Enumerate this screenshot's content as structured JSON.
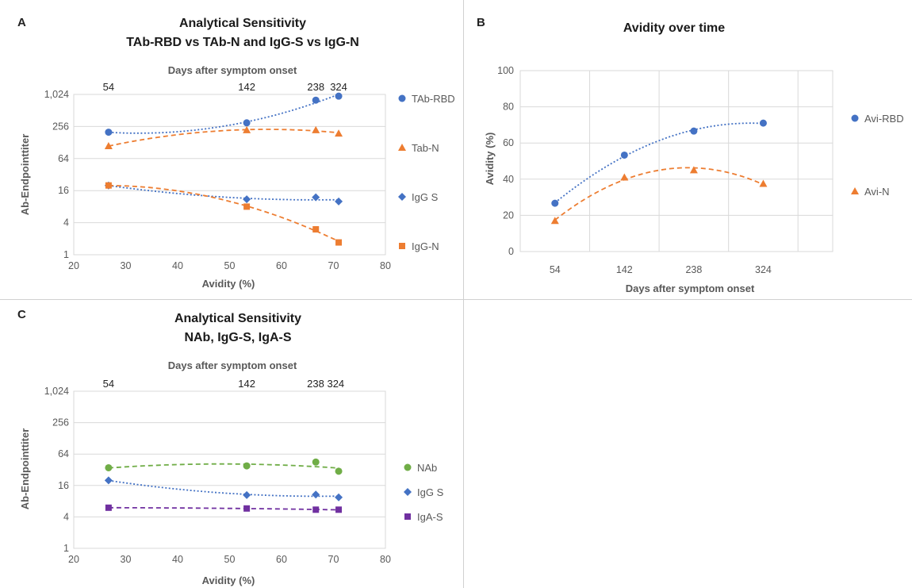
{
  "colors": {
    "blue": "#4472c4",
    "orange": "#ed7d31",
    "green": "#70ad47",
    "purple": "#7030a0",
    "dark_blue": "#2e64b0"
  },
  "panels": {
    "A": {
      "label": "A",
      "title_line1": "Analytical Sensitivity",
      "title_line2": "TAb-RBD vs TAb-N and IgG-S vs IgG-N",
      "top_axis_title": "Days after symptom onset",
      "top_ticks": [
        "54",
        "142",
        "238",
        "324"
      ],
      "top_tick_x": [
        26.7,
        53.3,
        66.6,
        71.0
      ],
      "xlabel": "Avidity (%)",
      "ylabel": "Ab-Endpointtiter",
      "xticks": [
        "20",
        "30",
        "40",
        "50",
        "60",
        "70",
        "80"
      ],
      "yticks": [
        "1",
        "4",
        "16",
        "64",
        "256",
        "1,024"
      ]
    },
    "B": {
      "label": "B",
      "title": "Avidity over time",
      "xlabel": "Days after symptom onset",
      "ylabel": "Avidity (%)",
      "xticks": [
        "54",
        "142",
        "238",
        "324"
      ],
      "yticks": [
        "0",
        "20",
        "40",
        "60",
        "80",
        "100"
      ]
    },
    "C": {
      "label": "C",
      "title_line1": "Analytical Sensitivity",
      "title_line2": "NAb, IgG-S, IgA-S",
      "top_axis_title": "Days after symptom onset",
      "top_ticks": [
        "54",
        "142",
        "238 324"
      ],
      "top_tick_x": [
        26.7,
        53.3,
        68.5
      ],
      "xlabel": "Avidity (%)",
      "ylabel": "Ab-Endpointtiter",
      "xticks": [
        "20",
        "30",
        "40",
        "50",
        "60",
        "70",
        "80"
      ],
      "yticks": [
        "1",
        "4",
        "16",
        "64",
        "256",
        "1,024"
      ]
    }
  },
  "chart_data": [
    {
      "type": "scatter",
      "panel": "A",
      "title": "Analytical Sensitivity TAb-RBD vs TAb-N and IgG-S vs IgG-N",
      "xlabel": "Avidity (%)",
      "ylabel": "Ab-Endpointtiter",
      "xlim": [
        20,
        80
      ],
      "ylim": [
        1,
        1024
      ],
      "y_scale": "log2",
      "secondary_x": {
        "label": "Days after symptom onset",
        "values": [
          54,
          142,
          238,
          324
        ]
      },
      "legend_position": "right",
      "series": [
        {
          "name": "TAb-RBD",
          "color": "#4472c4",
          "marker": "circle",
          "trendline": "dotted",
          "x": [
            26.7,
            53.3,
            66.6,
            71.0
          ],
          "y": [
            200,
            300,
            800,
            950
          ]
        },
        {
          "name": "Tab-N",
          "color": "#ed7d31",
          "marker": "triangle",
          "trendline": "dashed",
          "x": [
            26.7,
            53.3,
            66.6,
            71.0
          ],
          "y": [
            110,
            220,
            220,
            190
          ]
        },
        {
          "name": "IgG S",
          "color": "#4472c4",
          "marker": "diamond",
          "trendline": "dotted",
          "x": [
            26.7,
            53.3,
            66.6,
            71.0
          ],
          "y": [
            20,
            11,
            12,
            10
          ]
        },
        {
          "name": "IgG-N",
          "color": "#ed7d31",
          "marker": "square",
          "trendline": "dashed",
          "x": [
            26.7,
            53.3,
            66.6,
            71.0
          ],
          "y": [
            20,
            8,
            3,
            1.7
          ]
        }
      ]
    },
    {
      "type": "line",
      "panel": "B",
      "title": "Avidity over time",
      "xlabel": "Days after symptom onset",
      "ylabel": "Avidity (%)",
      "categories": [
        "54",
        "142",
        "238",
        "324"
      ],
      "ylim": [
        0,
        100
      ],
      "legend_position": "right",
      "series": [
        {
          "name": "Avi-RBD",
          "color": "#4472c4",
          "marker": "circle",
          "trendline": "dotted",
          "values": [
            26.7,
            53.3,
            66.6,
            71.0
          ]
        },
        {
          "name": "Avi-N",
          "color": "#ed7d31",
          "marker": "triangle",
          "trendline": "dashed",
          "values": [
            17,
            41,
            45,
            37.5
          ]
        }
      ]
    },
    {
      "type": "scatter",
      "panel": "C",
      "title": "Analytical Sensitivity NAb, IgG-S, IgA-S",
      "xlabel": "Avidity (%)",
      "ylabel": "Ab-Endpointtiter",
      "xlim": [
        20,
        80
      ],
      "ylim": [
        1,
        1024
      ],
      "y_scale": "log2",
      "secondary_x": {
        "label": "Days after symptom onset",
        "values": [
          54,
          142,
          238,
          324
        ]
      },
      "legend_position": "right",
      "series": [
        {
          "name": "NAb",
          "color": "#70ad47",
          "marker": "circle",
          "trendline": "dashed",
          "x": [
            26.7,
            53.3,
            66.6,
            71.0
          ],
          "y": [
            35,
            38,
            45,
            30
          ]
        },
        {
          "name": "IgG S",
          "color": "#4472c4",
          "marker": "diamond",
          "trendline": "dotted",
          "x": [
            26.7,
            53.3,
            66.6,
            71.0
          ],
          "y": [
            20,
            10.5,
            10.7,
            9.5
          ]
        },
        {
          "name": "IgA-S",
          "color": "#7030a0",
          "marker": "square",
          "trendline": "dashed",
          "x": [
            26.7,
            53.3,
            66.6,
            71.0
          ],
          "y": [
            6,
            5.8,
            5.5,
            5.5
          ]
        }
      ]
    }
  ]
}
